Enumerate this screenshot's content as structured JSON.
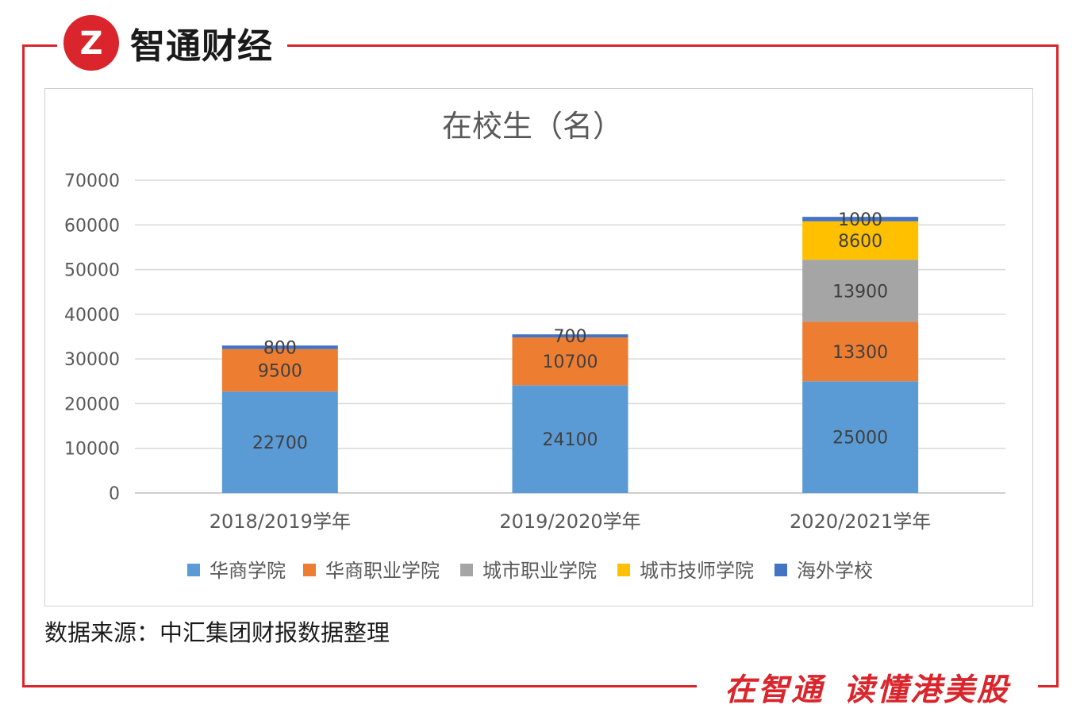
{
  "brand": {
    "name": "智通财经",
    "logo_mark": "Z",
    "accent_color": "#d9252b"
  },
  "slogan": {
    "part1": "在智通",
    "part2": "读懂港美股"
  },
  "source_note": "数据来源：中汇集团财报数据整理",
  "chart_data": {
    "type": "bar",
    "stacked": true,
    "title": "在校生（名）",
    "categories": [
      "2018/2019学年",
      "2019/2020学年",
      "2020/2021学年"
    ],
    "ylim": [
      0,
      70000
    ],
    "yticks": [
      0,
      10000,
      20000,
      30000,
      40000,
      50000,
      60000,
      70000
    ],
    "grid": true,
    "legend_position": "bottom",
    "series": [
      {
        "name": "华商学院",
        "color": "#5b9bd5",
        "values": [
          22700,
          24100,
          25000
        ]
      },
      {
        "name": "华商职业学院",
        "color": "#ed7d31",
        "values": [
          9500,
          10700,
          13300
        ]
      },
      {
        "name": "城市职业学院",
        "color": "#a5a5a5",
        "values": [
          0,
          0,
          13900
        ]
      },
      {
        "name": "城市技师学院",
        "color": "#ffc000",
        "values": [
          0,
          0,
          8600
        ]
      },
      {
        "name": "海外学校",
        "color": "#4472c4",
        "values": [
          800,
          700,
          1000
        ]
      }
    ]
  }
}
